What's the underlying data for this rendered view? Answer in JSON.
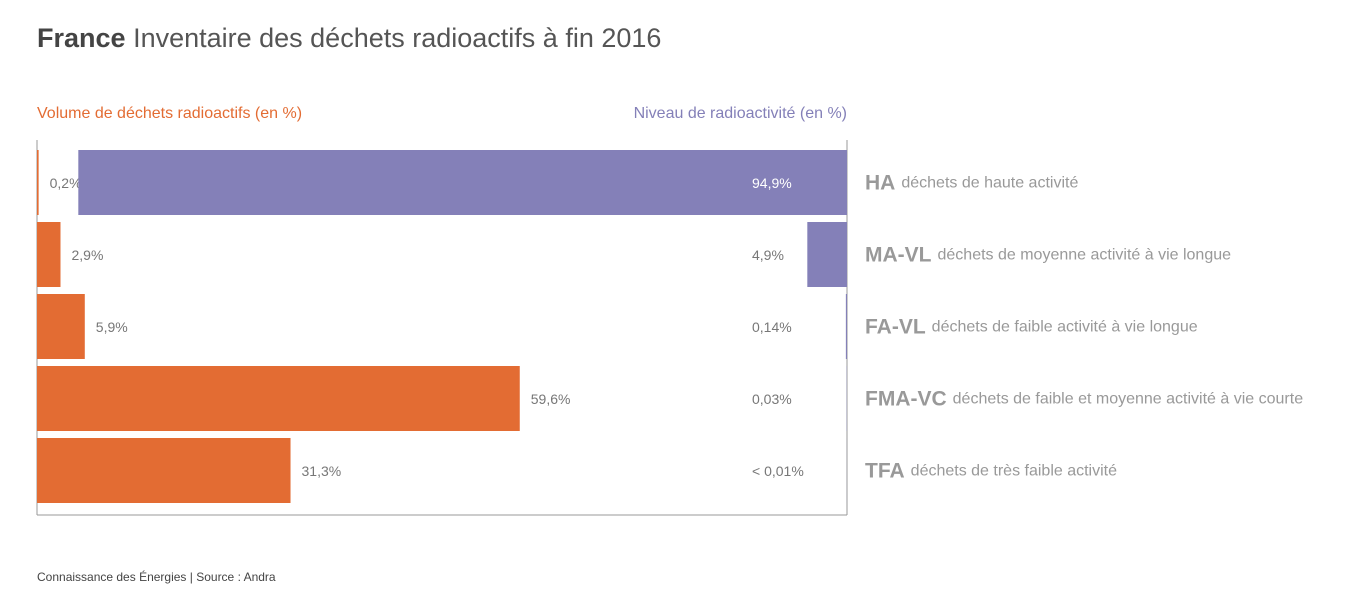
{
  "chart_data": {
    "type": "opposed-bar",
    "title_bold": "France",
    "title": "Inventaire des déchets radioactifs à fin 2016",
    "categories": [
      "HA",
      "MA-VL",
      "FA-VL",
      "FMA-VC",
      "TFA"
    ],
    "descriptions": [
      "déchets de haute activité",
      "déchets de moyenne activité à vie longue",
      "déchets de faible activité à vie longue",
      "déchets de faible et moyenne activité à vie courte",
      "déchets de très faible activité"
    ],
    "xlim": [
      0,
      100
    ],
    "series": [
      {
        "name": "Volume de déchets radioactifs (en %)",
        "color": "#e36c33",
        "side": "left",
        "values": [
          0.2,
          2.9,
          5.9,
          59.6,
          31.3
        ],
        "value_labels": [
          "0,2%",
          "2,9%",
          "5,9%",
          "59,6%",
          "31,3%"
        ]
      },
      {
        "name": "Niveau de radioactivité (en %)",
        "color": "#8480b8",
        "side": "right",
        "values": [
          94.9,
          4.9,
          0.14,
          0.03,
          0.01
        ],
        "value_labels": [
          "94,9%",
          "4,9%",
          "0,14%",
          "0,03%",
          "< 0,01%"
        ]
      }
    ],
    "source": "Connaissance des Énergies | Source : Andra"
  }
}
